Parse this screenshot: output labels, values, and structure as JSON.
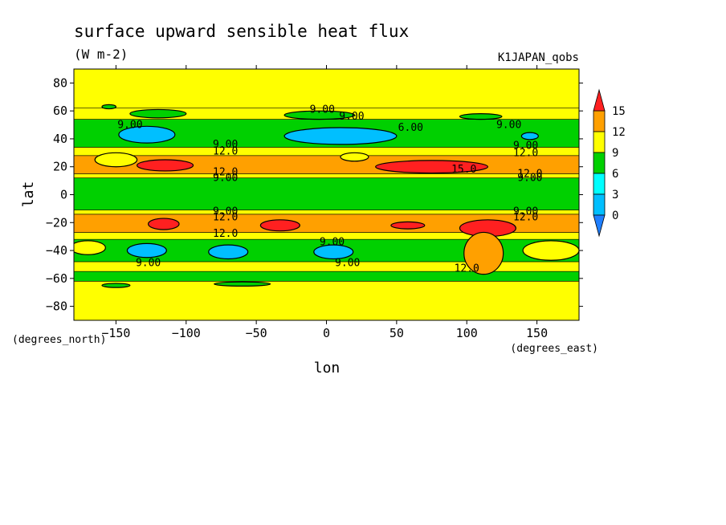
{
  "chart_data": {
    "type": "heatmap",
    "title": "surface upward sensible heat flux",
    "units": "(W m-2)",
    "dataset": "K1JAPAN_qobs",
    "xlabel": "lon",
    "ylabel": "lat",
    "x_units": "(degrees_east)",
    "y_units": "(degrees_north)",
    "xlim": [
      -180,
      180
    ],
    "ylim": [
      -90,
      90
    ],
    "x_ticks": [
      -150,
      -100,
      -50,
      0,
      50,
      100,
      150
    ],
    "x_tick_labels": [
      "−150",
      "−100",
      "−50",
      "0",
      "50",
      "100",
      "150"
    ],
    "y_ticks": [
      80,
      60,
      40,
      20,
      0,
      -20,
      -40,
      -60,
      -80
    ],
    "y_tick_labels": [
      "80",
      "60",
      "40",
      "20",
      "0",
      "−20",
      "−40",
      "−60",
      "−80"
    ],
    "colorbar": {
      "levels": [
        0,
        3,
        6,
        9,
        12,
        15
      ],
      "level_labels": [
        "0",
        "3",
        "6",
        "9",
        "12",
        "15"
      ],
      "colors": {
        "below_0": "#1f7fff",
        "0_3": "#00bfff",
        "3_6": "#00ffff",
        "6_9": "#00d000",
        "9_12": "#ffff00",
        "12_15": "#ffa000",
        "above_15": "#ff2020"
      }
    },
    "bands": [
      {
        "lat": [
          -90,
          -62
        ],
        "level": "9_12"
      },
      {
        "lat": [
          -62,
          -55
        ],
        "level": "6_9"
      },
      {
        "lat": [
          -55,
          -48
        ],
        "level": "9_12"
      },
      {
        "lat": [
          -48,
          -32
        ],
        "level": "6_9"
      },
      {
        "lat": [
          -32,
          -27
        ],
        "level": "9_12"
      },
      {
        "lat": [
          -27,
          -14
        ],
        "level": "12_15"
      },
      {
        "lat": [
          -14,
          -11
        ],
        "level": "9_12"
      },
      {
        "lat": [
          -11,
          12
        ],
        "level": "6_9"
      },
      {
        "lat": [
          12,
          15
        ],
        "level": "9_12"
      },
      {
        "lat": [
          15,
          28
        ],
        "level": "12_15"
      },
      {
        "lat": [
          28,
          34
        ],
        "level": "9_12"
      },
      {
        "lat": [
          34,
          54
        ],
        "level": "6_9"
      },
      {
        "lat": [
          54,
          62
        ],
        "level": "9_12"
      },
      {
        "lat": [
          62,
          90
        ],
        "level": "9_12"
      }
    ],
    "patches": [
      {
        "lon": -150,
        "lat": 25,
        "w": 30,
        "h": 10,
        "level": "9_12"
      },
      {
        "lon": 20,
        "lat": 27,
        "w": 20,
        "h": 6,
        "level": "9_12"
      },
      {
        "lon": -115,
        "lat": 21,
        "w": 40,
        "h": 8,
        "level": "above_15"
      },
      {
        "lon": 75,
        "lat": 20,
        "w": 80,
        "h": 9,
        "level": "above_15"
      },
      {
        "lon": -128,
        "lat": 43,
        "w": 40,
        "h": 12,
        "level": "0_3"
      },
      {
        "lon": 10,
        "lat": 42,
        "w": 80,
        "h": 12,
        "level": "0_3"
      },
      {
        "lon": 145,
        "lat": 42,
        "w": 12,
        "h": 5,
        "level": "0_3"
      },
      {
        "lon": -155,
        "lat": 63,
        "w": 10,
        "h": 3,
        "level": "6_9"
      },
      {
        "lon": -120,
        "lat": 58,
        "w": 40,
        "h": 6,
        "level": "6_9"
      },
      {
        "lon": -5,
        "lat": 57,
        "w": 50,
        "h": 6,
        "level": "6_9"
      },
      {
        "lon": 110,
        "lat": 56,
        "w": 30,
        "h": 4,
        "level": "6_9"
      },
      {
        "lon": -116,
        "lat": -21,
        "w": 22,
        "h": 8,
        "level": "above_15"
      },
      {
        "lon": -33,
        "lat": -22,
        "w": 28,
        "h": 8,
        "level": "above_15"
      },
      {
        "lon": 58,
        "lat": -22,
        "w": 24,
        "h": 5,
        "level": "above_15"
      },
      {
        "lon": 115,
        "lat": -24,
        "w": 40,
        "h": 12,
        "level": "above_15"
      },
      {
        "lon": 112,
        "lat": -42,
        "w": 28,
        "h": 30,
        "level": "12_15"
      },
      {
        "lon": -170,
        "lat": -38,
        "w": 25,
        "h": 10,
        "level": "9_12"
      },
      {
        "lon": 160,
        "lat": -40,
        "w": 40,
        "h": 14,
        "level": "9_12"
      },
      {
        "lon": -128,
        "lat": -40,
        "w": 28,
        "h": 10,
        "level": "0_3"
      },
      {
        "lon": -70,
        "lat": -41,
        "w": 28,
        "h": 10,
        "level": "0_3"
      },
      {
        "lon": 5,
        "lat": -41,
        "w": 28,
        "h": 10,
        "level": "0_3"
      },
      {
        "lon": -150,
        "lat": -65,
        "w": 20,
        "h": 3,
        "level": "6_9"
      },
      {
        "lon": -60,
        "lat": -64,
        "w": 40,
        "h": 3,
        "level": "6_9"
      }
    ],
    "contour_labels": [
      {
        "lon": -3,
        "lat": 61,
        "text": "9.00"
      },
      {
        "lon": 18,
        "lat": 56,
        "text": "9.00"
      },
      {
        "lon": -140,
        "lat": 50,
        "text": "9.00"
      },
      {
        "lon": 60,
        "lat": 48,
        "text": "6.00"
      },
      {
        "lon": 130,
        "lat": 50,
        "text": "9.00"
      },
      {
        "lon": -72,
        "lat": 36,
        "text": "9.00"
      },
      {
        "lon": -72,
        "lat": 31,
        "text": "12.0"
      },
      {
        "lon": 142,
        "lat": 35,
        "text": "9.00"
      },
      {
        "lon": 142,
        "lat": 30,
        "text": "12.0"
      },
      {
        "lon": 98,
        "lat": 18,
        "text": "15.0"
      },
      {
        "lon": -72,
        "lat": 16,
        "text": "12.0"
      },
      {
        "lon": -72,
        "lat": 12,
        "text": "9.00"
      },
      {
        "lon": 145,
        "lat": 15,
        "text": "12.0"
      },
      {
        "lon": 145,
        "lat": 12,
        "text": "9.00"
      },
      {
        "lon": -72,
        "lat": -12,
        "text": "9.00"
      },
      {
        "lon": -72,
        "lat": -16,
        "text": "12.0"
      },
      {
        "lon": 142,
        "lat": -12,
        "text": "9.00"
      },
      {
        "lon": 142,
        "lat": -16,
        "text": "12.0"
      },
      {
        "lon": -72,
        "lat": -28,
        "text": "12.0"
      },
      {
        "lon": 4,
        "lat": -34,
        "text": "9.00"
      },
      {
        "lon": -127,
        "lat": -49,
        "text": "9.00"
      },
      {
        "lon": 15,
        "lat": -49,
        "text": "9.00"
      },
      {
        "lon": 100,
        "lat": -53,
        "text": "12.0"
      }
    ],
    "grid": false,
    "legend": "right"
  }
}
